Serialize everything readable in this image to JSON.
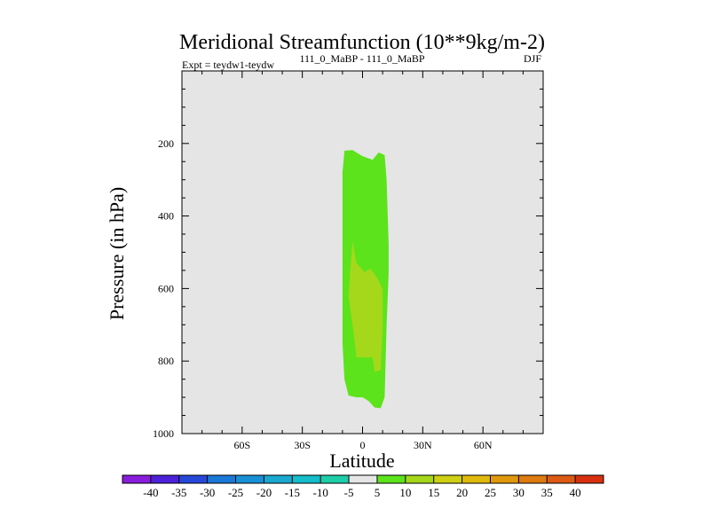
{
  "chart_data": {
    "type": "contour",
    "title": "Meridional Streamfunction (10**9kg/m-2)",
    "subtitle_left": "Expt = teydw1-teydw",
    "subtitle_center": "111_0_MaBP - 111_0_MaBP",
    "subtitle_right": "DJF",
    "xlabel": "Latitude",
    "ylabel": "Pressure (in hPa)",
    "xlim": [
      -90,
      90
    ],
    "ylim": [
      1000,
      0
    ],
    "x_ticks": [
      {
        "value": -60,
        "label": "60S"
      },
      {
        "value": -30,
        "label": "30S"
      },
      {
        "value": 0,
        "label": "0"
      },
      {
        "value": 30,
        "label": "30N"
      },
      {
        "value": 60,
        "label": "60N"
      }
    ],
    "y_ticks": [
      {
        "value": 200,
        "label": "200"
      },
      {
        "value": 400,
        "label": "400"
      },
      {
        "value": 600,
        "label": "600"
      },
      {
        "value": 800,
        "label": "800"
      },
      {
        "value": 1000,
        "label": "1000"
      }
    ],
    "background_level_color": "#e5e5e5",
    "regions": [
      {
        "name": "level-5-to-10",
        "color": "#5ce31c",
        "points": [
          [
            -9,
            220
          ],
          [
            -5,
            218
          ],
          [
            0,
            235
          ],
          [
            5,
            245
          ],
          [
            8,
            225
          ],
          [
            11,
            232
          ],
          [
            12,
            300
          ],
          [
            13,
            480
          ],
          [
            13,
            560
          ],
          [
            12,
            700
          ],
          [
            11,
            900
          ],
          [
            9,
            930
          ],
          [
            6,
            928
          ],
          [
            3,
            910
          ],
          [
            0,
            900
          ],
          [
            -3,
            900
          ],
          [
            -7,
            895
          ],
          [
            -9,
            850
          ],
          [
            -10,
            750
          ],
          [
            -10,
            600
          ],
          [
            -10,
            400
          ],
          [
            -10,
            280
          ]
        ]
      },
      {
        "name": "level-10-to-15",
        "color": "#a5d81a",
        "points": [
          [
            -5,
            470
          ],
          [
            -3,
            530
          ],
          [
            1,
            555
          ],
          [
            4,
            545
          ],
          [
            7,
            568
          ],
          [
            10,
            600
          ],
          [
            10,
            720
          ],
          [
            9,
            825
          ],
          [
            6,
            830
          ],
          [
            5,
            790
          ],
          [
            1,
            790
          ],
          [
            -3,
            790
          ],
          [
            -5,
            700
          ],
          [
            -7,
            620
          ],
          [
            -6,
            540
          ]
        ]
      }
    ],
    "colorbar": {
      "labels": [
        "-40",
        "-35",
        "-30",
        "-25",
        "-20",
        "-15",
        "-10",
        "-5",
        "5",
        "10",
        "15",
        "20",
        "25",
        "30",
        "35",
        "40"
      ],
      "colors": [
        "#8a1ddc",
        "#4d20d9",
        "#2648d9",
        "#1a78d8",
        "#1890d6",
        "#1aa8d0",
        "#14bdc9",
        "#1dcea8",
        "#e6e6e6",
        "#5ce31c",
        "#a5d81a",
        "#cdd013",
        "#e0b90d",
        "#e0990c",
        "#de7a10",
        "#dc5a14",
        "#d8300f"
      ]
    }
  }
}
